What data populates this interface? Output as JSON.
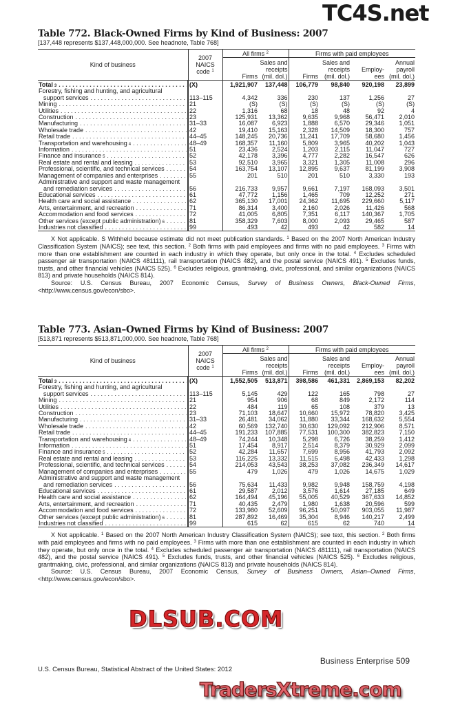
{
  "watermarks": {
    "top": "TC4S.net",
    "middle": "DLSUB.COM",
    "bottom": "TradersXtreme.com"
  },
  "colors": {
    "watermark_red": "#d6262a",
    "text": "#1a1a1a"
  },
  "headers": {
    "kind": "Kind of business",
    "naics_1": "2007",
    "naics_2": "NAICS",
    "naics_3": "code",
    "naics_sup": "1",
    "all_firms": "All firms",
    "all_firms_sup": "2",
    "paid": "Firms with paid employees",
    "firms": "Firms",
    "sales_1": "Sales and",
    "sales_2": "receipts",
    "sales_3": "(mil. dol.)",
    "emp_1": "Employ-",
    "emp_2": "ees",
    "pay_1": "Annual",
    "pay_2": "payroll",
    "pay_3": "(mil. dol.)"
  },
  "tables": [
    {
      "title": "Table 772. Black-Owned Firms by Kind of Business: 2007",
      "headnote": "[137,448 represents $137,448,000,000. See headnote, Table 768]",
      "rows": [
        {
          "label": "Total",
          "sup": "3",
          "total": true,
          "code": "(X)",
          "v": [
            "1,921,907",
            "137,448",
            "106,779",
            "98,840",
            "920,198",
            "23,899"
          ]
        },
        {
          "label": "Forestry, fishing and hunting, and agricultural",
          "nodots": true
        },
        {
          "label": "support services",
          "indent": true,
          "code": "113–115",
          "v": [
            "4,342",
            "336",
            "230",
            "137",
            "1,256",
            "27"
          ]
        },
        {
          "label": "Mining",
          "code": "21",
          "v": [
            "(S)",
            "(S)",
            "(S)",
            "(S)",
            "(S)",
            "(S)"
          ]
        },
        {
          "label": "Utilities",
          "code": "22",
          "v": [
            "1,316",
            "68",
            "18",
            "48",
            "92",
            "4"
          ]
        },
        {
          "label": "Construction",
          "code": "23",
          "v": [
            "125,931",
            "13,362",
            "9,635",
            "9,968",
            "56,471",
            "2,010"
          ]
        },
        {
          "label": "Manufacturing",
          "code": "31–33",
          "v": [
            "16,087",
            "6,923",
            "1,888",
            "6,570",
            "29,346",
            "1,051"
          ]
        },
        {
          "label": "Wholesale trade",
          "code": "42",
          "v": [
            "19,410",
            "15,163",
            "2,328",
            "14,509",
            "18,300",
            "757"
          ]
        },
        {
          "label": "Retail trade",
          "code": "44–45",
          "v": [
            "148,245",
            "20,736",
            "11,241",
            "17,709",
            "58,680",
            "1,456"
          ]
        },
        {
          "label": "Transportation and warehousing",
          "sup": "4",
          "code": "48–49",
          "v": [
            "168,357",
            "11,160",
            "5,809",
            "3,965",
            "40,202",
            "1,043"
          ]
        },
        {
          "label": "Information",
          "code": "51",
          "v": [
            "23,436",
            "2,524",
            "1,203",
            "2,115",
            "11,047",
            "727"
          ]
        },
        {
          "label": "Finance and insurance",
          "sup": "5",
          "code": "52",
          "v": [
            "42,178",
            "3,396",
            "4,777",
            "2,282",
            "16,547",
            "626"
          ]
        },
        {
          "label": "Real estate and rental and leasing",
          "code": "53",
          "v": [
            "92,510",
            "3,965",
            "3,321",
            "1,305",
            "11,008",
            "296"
          ]
        },
        {
          "label": "Professional, scientific, and technical services",
          "code": "54",
          "v": [
            "163,754",
            "13,107",
            "12,895",
            "9,637",
            "81,199",
            "3,908"
          ]
        },
        {
          "label": "Management of companies and enterprises",
          "code": "55",
          "v": [
            "201",
            "510",
            "201",
            "510",
            "3,330",
            "193"
          ]
        },
        {
          "label": "Administrative and support and waste management",
          "nodots": true
        },
        {
          "label": "and remediation services",
          "indent": true,
          "code": "56",
          "v": [
            "216,733",
            "9,957",
            "9,661",
            "7,197",
            "168,093",
            "3,501"
          ]
        },
        {
          "label": "Educational services",
          "code": "61",
          "v": [
            "47,772",
            "1,156",
            "1,465",
            "709",
            "12,252",
            "271"
          ]
        },
        {
          "label": "Health care and social assistance",
          "code": "62",
          "v": [
            "365,130",
            "17,001",
            "24,362",
            "11,695",
            "229,660",
            "5,117"
          ]
        },
        {
          "label": "Arts, entertainment, and recreation",
          "code": "71",
          "v": [
            "86,314",
            "3,400",
            "2,160",
            "2,026",
            "11,426",
            "568"
          ]
        },
        {
          "label": "Accommodation and food services",
          "code": "72",
          "v": [
            "41,005",
            "6,805",
            "7,351",
            "6,117",
            "140,367",
            "1,705"
          ]
        },
        {
          "label": "Other services (except public administration)",
          "sup": "6",
          "code": "81",
          "v": [
            "358,329",
            "7,603",
            "8,000",
            "2,093",
            "29,465",
            "587"
          ]
        },
        {
          "label": "Industries not classified",
          "code": "99",
          "v": [
            "493",
            "42",
            "493",
            "42",
            "582",
            "14"
          ]
        }
      ],
      "notes": [
        [
          {
            "t": "X Not applicable. S Withheld because estimate did not meet publication standards. "
          },
          {
            "s": "1"
          },
          {
            "t": " Based on the 2007 North American Industry Classification System (NAICS); see text, this section. "
          },
          {
            "s": "2"
          },
          {
            "t": " Both firms with paid employees and firms with no paid employees. "
          },
          {
            "s": "3"
          },
          {
            "t": " Firms with more than one establishment are counted in each industry in which they operate, but only once in the total. "
          },
          {
            "s": "4"
          },
          {
            "t": " Excludes scheduled passenger air transportation (NAICS 481111), rail transportation (NAICS 482), and the postal service (NAICS 491). "
          },
          {
            "s": "5"
          },
          {
            "t": " Excludes funds, trusts, and other financial vehicles (NAICS 525). "
          },
          {
            "s": "6"
          },
          {
            "t": " Excludes religious, grantmaking, civic, professional, and similar organizations (NAICS 813) and private households (NAICS 814)."
          }
        ],
        [
          {
            "t": "Source: U.S. Census Bureau, 2007 Economic Census, "
          },
          {
            "i": "Survey of Business Owners, Black-Owned Firms"
          },
          {
            "t": ", <http://www.census.gov/econ/sbo>."
          }
        ]
      ]
    },
    {
      "title": "Table 773. Asian–Owned Firms by Kind of Business: 2007",
      "headnote": "[513,871 represents $513,871,000,000. See headnote, Table 768]",
      "rows": [
        {
          "label": "Total",
          "sup": "3",
          "total": true,
          "code": "(X)",
          "v": [
            "1,552,505",
            "513,871",
            "398,586",
            "461,331",
            "2,869,153",
            "82,202"
          ]
        },
        {
          "label": "Forestry, fishing and hunting, and agricultural",
          "nodots": true
        },
        {
          "label": "support services",
          "indent": true,
          "code": "113–115",
          "v": [
            "5,145",
            "429",
            "122",
            "165",
            "798",
            "27"
          ]
        },
        {
          "label": "Mining",
          "code": "21",
          "v": [
            "954",
            "906",
            "68",
            "849",
            "2,172",
            "114"
          ]
        },
        {
          "label": "Utilities",
          "code": "22",
          "v": [
            "484",
            "119",
            "65",
            "108",
            "379",
            "13"
          ]
        },
        {
          "label": "Construction",
          "code": "23",
          "v": [
            "71,103",
            "18,647",
            "10,660",
            "15,972",
            "78,820",
            "3,425"
          ]
        },
        {
          "label": "Manufacturing",
          "code": "31–33",
          "v": [
            "26,481",
            "34,062",
            "11,880",
            "33,344",
            "168,632",
            "5,554"
          ]
        },
        {
          "label": "Wholesale trade",
          "code": "42",
          "v": [
            "60,569",
            "132,740",
            "30,630",
            "129,092",
            "212,906",
            "8,571"
          ]
        },
        {
          "label": "Retail trade",
          "code": "44–45",
          "v": [
            "191,233",
            "107,885",
            "77,531",
            "100,300",
            "382,823",
            "7,150"
          ]
        },
        {
          "label": "Transportation and warehousing",
          "sup": "4",
          "code": "48–49",
          "v": [
            "74,244",
            "10,348",
            "5,298",
            "6,726",
            "38,259",
            "1,412"
          ]
        },
        {
          "label": "Information",
          "code": "51",
          "v": [
            "17,454",
            "8,917",
            "2,514",
            "8,379",
            "30,929",
            "2,099"
          ]
        },
        {
          "label": "Finance and insurance",
          "sup": "5",
          "code": "52",
          "v": [
            "42,284",
            "11,657",
            "7,699",
            "8,956",
            "41,793",
            "2,092"
          ]
        },
        {
          "label": "Real estate and rental and leasing",
          "code": "53",
          "v": [
            "116,225",
            "13,332",
            "11,515",
            "6,498",
            "42,433",
            "1,298"
          ]
        },
        {
          "label": "Professional, scientific, and technical services",
          "code": "54",
          "v": [
            "214,053",
            "43,543",
            "38,253",
            "37,082",
            "236,349",
            "14,617"
          ]
        },
        {
          "label": "Management of companies and enterprises",
          "code": "55",
          "v": [
            "479",
            "1,026",
            "479",
            "1,026",
            "14,675",
            "1,029"
          ]
        },
        {
          "label": "Administrative and support and waste management",
          "nodots": true
        },
        {
          "label": "and remediation services",
          "indent": true,
          "code": "56",
          "v": [
            "75,634",
            "11,433",
            "9,982",
            "9,948",
            "158,759",
            "4,198"
          ]
        },
        {
          "label": "Educational services",
          "code": "61",
          "v": [
            "29,587",
            "2,012",
            "3,576",
            "1,614",
            "27,185",
            "649"
          ]
        },
        {
          "label": "Health care and social assistance",
          "code": "62",
          "v": [
            "164,494",
            "45,196",
            "55,005",
            "40,529",
            "367,633",
            "14,852"
          ]
        },
        {
          "label": "Arts, entertainment, and recreation",
          "code": "71",
          "v": [
            "40,435",
            "2,479",
            "1,980",
            "1,638",
            "20,596",
            "599"
          ]
        },
        {
          "label": "Accommodation and food services",
          "code": "72",
          "v": [
            "133,980",
            "52,609",
            "96,251",
            "50,097",
            "903,055",
            "11,987"
          ]
        },
        {
          "label": "Other services (except public administration)",
          "sup": "6",
          "code": "81",
          "v": [
            "287,892",
            "16,469",
            "35,304",
            "8,946",
            "140,217",
            "2,499"
          ]
        },
        {
          "label": "Industries not classified",
          "code": "99",
          "v": [
            "615",
            "62",
            "615",
            "62",
            "740",
            "14"
          ]
        }
      ],
      "notes": [
        [
          {
            "t": "X Not applicable. "
          },
          {
            "s": "1"
          },
          {
            "t": " Based on the 2007 North American Industry Classification System (NAICS); see text, this section. "
          },
          {
            "s": "2"
          },
          {
            "t": " Both firms with paid employees and firms with no paid employees. "
          },
          {
            "s": "3"
          },
          {
            "t": " Firms with more than one establishment are counted in each industry in which they operate, but only once in the total. "
          },
          {
            "s": "4"
          },
          {
            "t": " Excludes scheduled passenger air transportation (NAICS 481111), rail transportation (NAICS 482), and the postal service (NAICS 491). "
          },
          {
            "s": "5"
          },
          {
            "t": " Excludes funds, trusts, and other financial vehicles (NAICS 525). "
          },
          {
            "s": "6"
          },
          {
            "t": " Excludes religious, grantmaking, civic, professional, and similar organizations (NAICS 813) and private households (NAICS 814)."
          }
        ],
        [
          {
            "t": "Source: U.S. Census Bureau, 2007 Economic Census, "
          },
          {
            "i": "Survey of Business Owners, Asian–Owned Firms"
          },
          {
            "t": ", <http://www.census.gov/econ/sbo>."
          }
        ]
      ]
    }
  ],
  "footer": {
    "left": "U.S. Census Bureau, Statistical Abstract of the United States: 2012",
    "right": "Business Enterprise  509"
  }
}
